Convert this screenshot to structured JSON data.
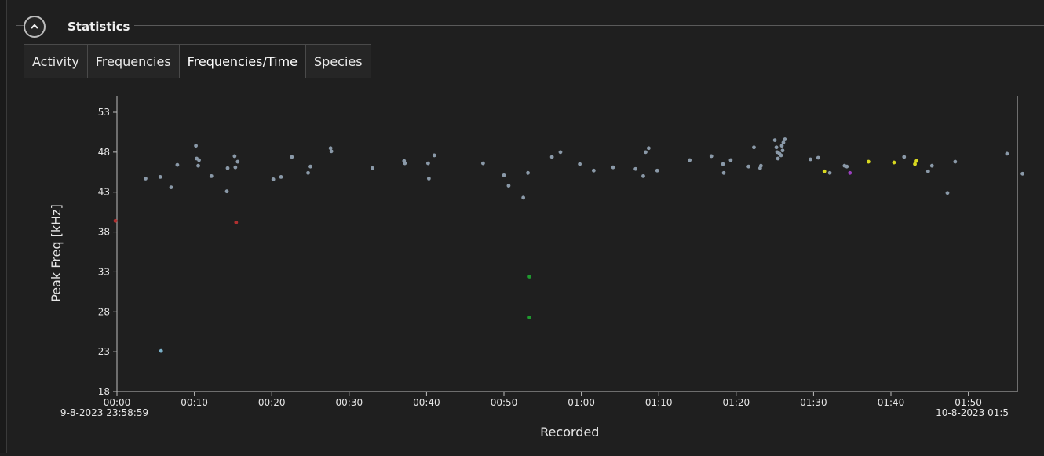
{
  "group": {
    "title": "Statistics"
  },
  "tabs": [
    {
      "label": "Activity",
      "active": false
    },
    {
      "label": "Frequencies",
      "active": false
    },
    {
      "label": "Frequencies/Time",
      "active": true
    },
    {
      "label": "Species",
      "active": false
    }
  ],
  "chart_data": {
    "type": "scatter",
    "xlabel": "Recorded",
    "ylabel": "Peak Freq [kHz]",
    "x_unit": "minutes after 23:58:59",
    "xlim": [
      0,
      117
    ],
    "ylim": [
      18,
      55
    ],
    "yticks": [
      18,
      23,
      28,
      33,
      38,
      43,
      48,
      53
    ],
    "xticks": [
      {
        "value": 0,
        "label": "00:00"
      },
      {
        "value": 10,
        "label": "00:10"
      },
      {
        "value": 20,
        "label": "00:20"
      },
      {
        "value": 30,
        "label": "00:30"
      },
      {
        "value": 40,
        "label": "00:40"
      },
      {
        "value": 50,
        "label": "00:50"
      },
      {
        "value": 60,
        "label": "01:00"
      },
      {
        "value": 70,
        "label": "01:10"
      },
      {
        "value": 80,
        "label": "01:20"
      },
      {
        "value": 90,
        "label": "01:30"
      },
      {
        "value": 100,
        "label": "01:40"
      },
      {
        "value": 110,
        "label": "01:50"
      }
    ],
    "x_start_label": "9-8-2023 23:58:59",
    "x_end_label": "10-8-2023 01:5",
    "grid": false,
    "series": [
      {
        "color": "#8a99a8",
        "points": [
          [
            3.7,
            44.7
          ],
          [
            5.6,
            44.9
          ],
          [
            7.0,
            43.6
          ],
          [
            7.8,
            46.4
          ],
          [
            10.2,
            48.8
          ],
          [
            10.3,
            47.2
          ],
          [
            10.5,
            46.3
          ],
          [
            10.6,
            47.0
          ],
          [
            12.2,
            45.0
          ],
          [
            14.2,
            43.1
          ],
          [
            14.3,
            46.0
          ],
          [
            15.2,
            47.5
          ],
          [
            15.3,
            46.1
          ],
          [
            15.6,
            46.8
          ],
          [
            20.2,
            44.6
          ],
          [
            21.2,
            44.9
          ],
          [
            22.6,
            47.4
          ],
          [
            24.7,
            45.4
          ],
          [
            25.0,
            46.2
          ],
          [
            27.6,
            48.5
          ],
          [
            27.7,
            48.1
          ],
          [
            33.0,
            46.0
          ],
          [
            37.1,
            46.9
          ],
          [
            37.2,
            46.6
          ],
          [
            40.2,
            46.6
          ],
          [
            40.3,
            44.7
          ],
          [
            41.0,
            47.6
          ],
          [
            47.3,
            46.6
          ],
          [
            50.0,
            45.1
          ],
          [
            50.6,
            43.8
          ],
          [
            52.5,
            42.3
          ],
          [
            53.1,
            45.4
          ],
          [
            56.2,
            47.4
          ],
          [
            57.3,
            48.0
          ],
          [
            59.8,
            46.5
          ],
          [
            61.6,
            45.7
          ],
          [
            64.1,
            46.1
          ],
          [
            67.0,
            45.9
          ],
          [
            68.0,
            45.0
          ],
          [
            68.3,
            48.0
          ],
          [
            68.7,
            48.5
          ],
          [
            69.8,
            45.7
          ],
          [
            74.0,
            47.0
          ],
          [
            76.8,
            47.5
          ],
          [
            78.3,
            46.5
          ],
          [
            78.4,
            45.4
          ],
          [
            79.3,
            47.0
          ],
          [
            81.6,
            46.2
          ],
          [
            82.3,
            48.6
          ],
          [
            83.1,
            46.0
          ],
          [
            83.2,
            46.3
          ],
          [
            85.0,
            49.5
          ],
          [
            85.3,
            48.0
          ],
          [
            85.6,
            47.8
          ],
          [
            85.9,
            48.8
          ],
          [
            86.1,
            49.2
          ],
          [
            86.3,
            49.6
          ],
          [
            85.4,
            47.2
          ],
          [
            85.8,
            47.6
          ],
          [
            85.2,
            48.6
          ],
          [
            86.0,
            48.2
          ],
          [
            89.6,
            47.1
          ],
          [
            90.6,
            47.3
          ],
          [
            92.1,
            45.4
          ],
          [
            94.0,
            46.3
          ],
          [
            94.3,
            46.2
          ],
          [
            101.7,
            47.4
          ],
          [
            104.8,
            45.6
          ],
          [
            105.3,
            46.3
          ],
          [
            107.3,
            42.9
          ],
          [
            108.3,
            46.8
          ],
          [
            115.0,
            47.8
          ],
          [
            117.0,
            45.3
          ]
        ]
      },
      {
        "color": "#d8d820",
        "points": [
          [
            91.4,
            45.6
          ],
          [
            97.1,
            46.8
          ],
          [
            100.4,
            46.7
          ],
          [
            103.1,
            46.5
          ],
          [
            103.3,
            46.9
          ]
        ]
      },
      {
        "color": "#9a3fbf",
        "points": [
          [
            94.7,
            45.4
          ]
        ]
      },
      {
        "color": "#b03030",
        "points": [
          [
            15.4,
            39.2
          ],
          [
            -0.2,
            39.4
          ]
        ]
      },
      {
        "color": "#1f9a2f",
        "points": [
          [
            53.3,
            32.4
          ],
          [
            53.3,
            27.3
          ]
        ]
      },
      {
        "color": "#7ab0c8",
        "points": [
          [
            5.7,
            23.1
          ]
        ]
      }
    ]
  }
}
